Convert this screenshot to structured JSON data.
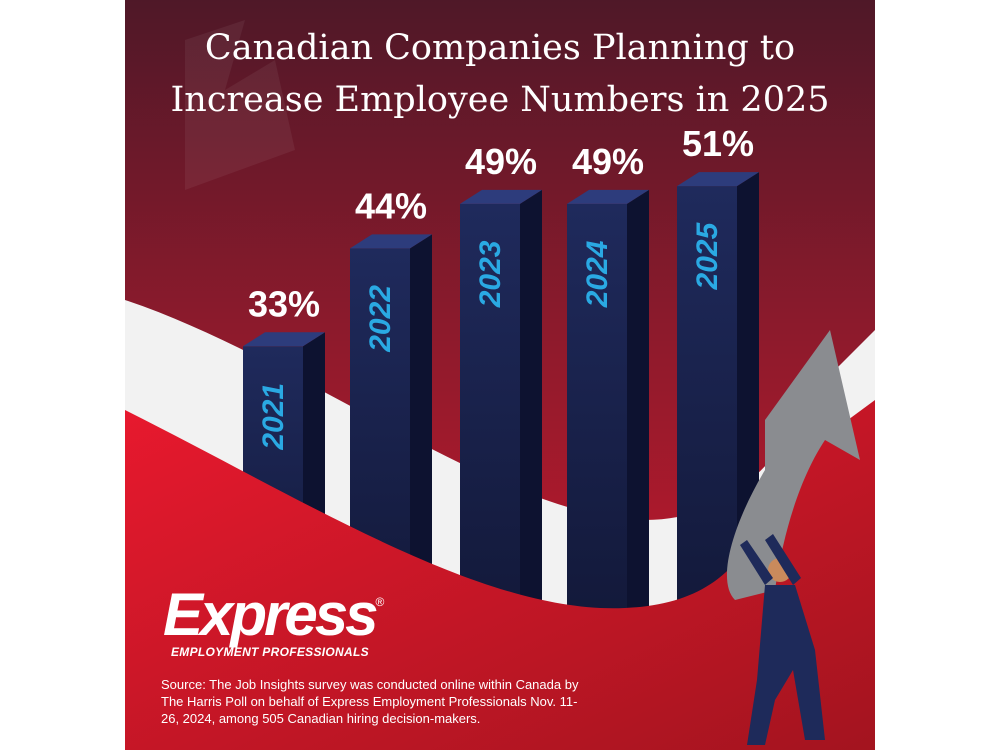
{
  "chart_data": {
    "type": "bar3d",
    "title": "Canadian Companies Planning to Increase Employee Numbers in 2025",
    "categories": [
      "2021",
      "2022",
      "2023",
      "2024",
      "2025"
    ],
    "values": [
      33,
      44,
      49,
      49,
      51
    ],
    "value_labels": [
      "33%",
      "44%",
      "49%",
      "49%",
      "51%"
    ],
    "color": "#1c2452"
  },
  "logo": {
    "name": "Express",
    "mark": "®",
    "tagline": "EMPLOYMENT PROFESSIONALS"
  },
  "source": "Source: The Job Insights survey was conducted online within Canada by The Harris Poll on behalf of Express Employment Professionals Nov. 11-26, 2024, among 505 Canadian hiring decision-makers."
}
